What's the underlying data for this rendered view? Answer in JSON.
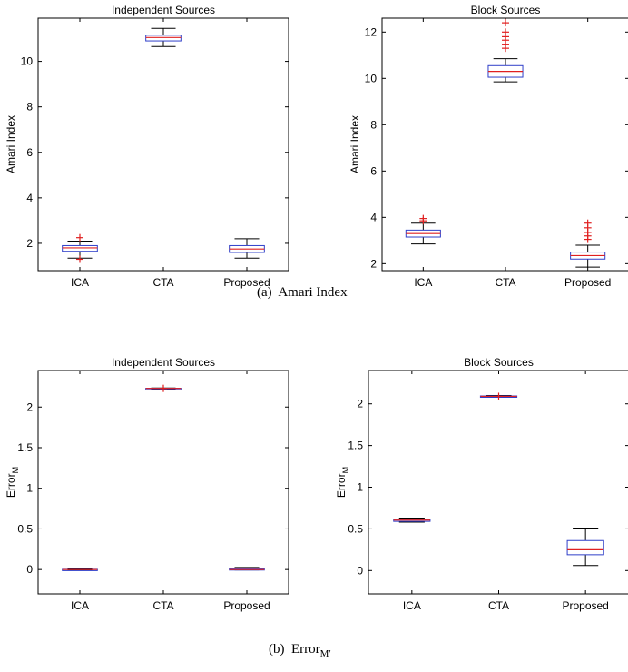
{
  "captions": {
    "a_label": "(a)",
    "a_text": "Amari Index",
    "b_label": "(b)",
    "b_text": "Error",
    "b_sub": "M′"
  },
  "colors": {
    "box": "#2f3fc9",
    "median": "#e02020",
    "outlier": "#e02020",
    "whisker": "#000000"
  },
  "chart_data": [
    {
      "type": "box",
      "title": "Independent Sources",
      "ylabel": "Amari Index",
      "categories": [
        "ICA",
        "CTA",
        "Proposed"
      ],
      "ylim": [
        0.8,
        11.9
      ],
      "yticks": [
        2,
        4,
        6,
        8,
        10
      ],
      "boxes": [
        {
          "whislo": 1.35,
          "q1": 1.65,
          "med": 1.8,
          "q3": 1.9,
          "whishi": 2.1,
          "fliers": [
            2.25,
            1.3
          ]
        },
        {
          "whislo": 10.65,
          "q1": 10.9,
          "med": 11.05,
          "q3": 11.15,
          "whishi": 11.45,
          "fliers": []
        },
        {
          "whislo": 1.35,
          "q1": 1.6,
          "med": 1.75,
          "q3": 1.9,
          "whishi": 2.2,
          "fliers": []
        }
      ]
    },
    {
      "type": "box",
      "title": "Block Sources",
      "ylabel": "Amari Index",
      "categories": [
        "ICA",
        "CTA",
        "Proposed"
      ],
      "ylim": [
        1.7,
        12.6
      ],
      "yticks": [
        2,
        4,
        6,
        8,
        10,
        12
      ],
      "boxes": [
        {
          "whislo": 2.85,
          "q1": 3.15,
          "med": 3.3,
          "q3": 3.45,
          "whishi": 3.75,
          "fliers": [
            3.95,
            3.85
          ]
        },
        {
          "whislo": 9.85,
          "q1": 10.05,
          "med": 10.3,
          "q3": 10.55,
          "whishi": 10.85,
          "fliers": [
            11.3,
            11.45,
            11.65,
            11.8,
            12.0,
            12.4
          ]
        },
        {
          "whislo": 1.85,
          "q1": 2.2,
          "med": 2.35,
          "q3": 2.5,
          "whishi": 2.8,
          "fliers": [
            3.05,
            3.2,
            3.35,
            3.55,
            3.75
          ]
        }
      ]
    },
    {
      "type": "box",
      "title": "Independent Sources",
      "ylabel": "Error",
      "ylabel_sub": "M",
      "categories": [
        "ICA",
        "CTA",
        "Proposed"
      ],
      "ylim": [
        -0.3,
        2.45
      ],
      "yticks": [
        0,
        0.5,
        1,
        1.5,
        2
      ],
      "yticklabels": [
        "0",
        "0.5",
        "1",
        "1.5",
        "2"
      ],
      "boxes": [
        {
          "whislo": -0.005,
          "q1": -0.003,
          "med": 0.0,
          "q3": 0.003,
          "whishi": 0.008,
          "fliers": []
        },
        {
          "whislo": 2.225,
          "q1": 2.228,
          "med": 2.23,
          "q3": 2.232,
          "whishi": 2.235,
          "fliers": [
            2.23
          ]
        },
        {
          "whislo": -0.005,
          "q1": -0.003,
          "med": 0.0,
          "q3": 0.01,
          "whishi": 0.025,
          "fliers": []
        }
      ]
    },
    {
      "type": "box",
      "title": "Block Sources",
      "ylabel": "Error",
      "ylabel_sub": "M",
      "categories": [
        "ICA",
        "CTA",
        "Proposed"
      ],
      "ylim": [
        -0.28,
        2.4
      ],
      "yticks": [
        0,
        0.5,
        1,
        1.5,
        2
      ],
      "yticklabels": [
        "0",
        "0.5",
        "1",
        "1.5",
        "2"
      ],
      "boxes": [
        {
          "whislo": 0.58,
          "q1": 0.59,
          "med": 0.605,
          "q3": 0.615,
          "whishi": 0.63,
          "fliers": []
        },
        {
          "whislo": 2.08,
          "q1": 2.085,
          "med": 2.09,
          "q3": 2.095,
          "whishi": 2.1,
          "fliers": [
            2.09
          ]
        },
        {
          "whislo": 0.06,
          "q1": 0.19,
          "med": 0.25,
          "q3": 0.36,
          "whishi": 0.51,
          "fliers": []
        }
      ]
    }
  ]
}
